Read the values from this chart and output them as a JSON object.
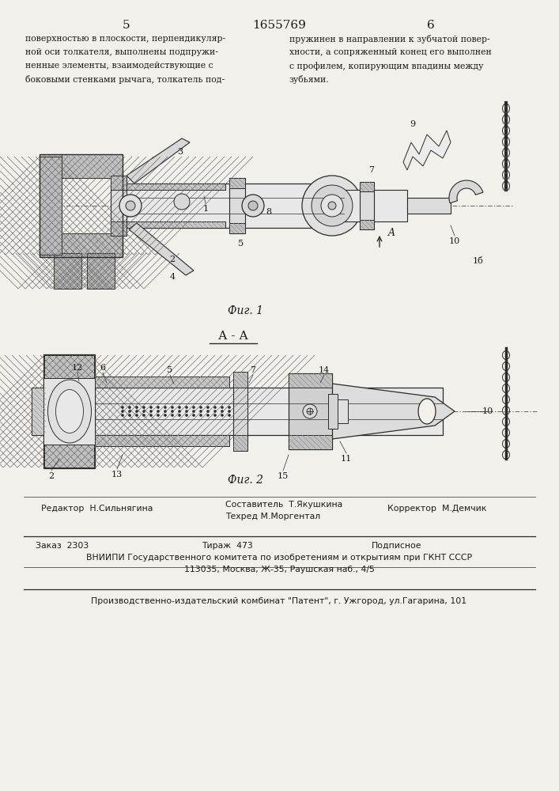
{
  "bg_color": "#f2f0eb",
  "page_width": 7.07,
  "page_height": 10.0,
  "header_num_left": "5",
  "header_num_center": "1655769",
  "header_num_right": "6",
  "col_left_text": "поверхностью в плоскости, перпендикуляр-\nной оси толкателя, выполнены подпружи-\nненные элементы, взаимодействующие с\nбоковыми стенками рычага, толкатель под-",
  "col_right_text": "пружинен в направлении к зубчатой повер-\nхности, а сопряженный конец его выполнен\nс профилем, копирующим впадины между\nзубьями.",
  "fig1_caption": "Фиг. 1",
  "fig2_caption": "Фиг. 2",
  "section_label": "А - А",
  "footer_editor": "Редактор  Н.Сильнягина",
  "footer_composer": "Составитель  Т.Якушкина",
  "footer_tech": "Техред М.Моргентал",
  "footer_corrector": "Корректор  М.Демчик",
  "footer_order": "Заказ  2303",
  "footer_print": "Тираж  473",
  "footer_subscription": "Подписное",
  "footer_vniiipi": "ВНИИПИ Государственного комитета по изобретениям и открытиям при ГКНТ СССР",
  "footer_address": "113035, Москва, Ж-35, Раушская наб., 4/5",
  "footer_publisher": "Производственно-издательский комбинат \"Патент\", г. Ужгород, ул.Гагарина, 101",
  "text_color": "#1a1a1a",
  "line_color": "#2a2a2a"
}
